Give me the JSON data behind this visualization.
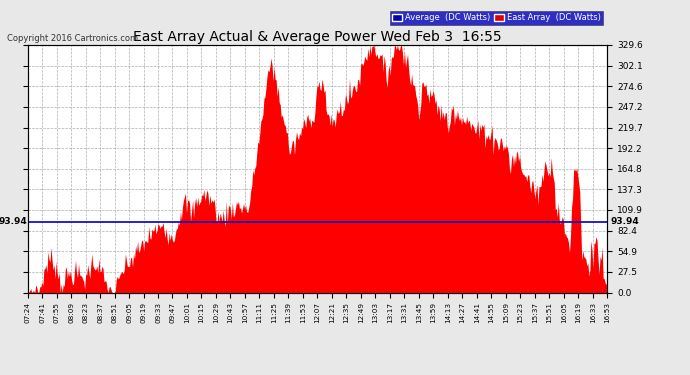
{
  "title": "East Array Actual & Average Power Wed Feb 3  16:55",
  "copyright": "Copyright 2016 Cartronics.com",
  "legend_labels": [
    "Average  (DC Watts)",
    "East Array  (DC Watts)"
  ],
  "legend_colors": [
    "#0000bb",
    "#dd0000"
  ],
  "avg_value": 93.94,
  "y_max": 329.6,
  "y_ticks": [
    0.0,
    27.5,
    54.9,
    82.4,
    109.9,
    137.3,
    164.8,
    192.2,
    219.7,
    247.2,
    274.6,
    302.1,
    329.6
  ],
  "y_tick_labels": [
    "0.0",
    "27.5",
    "54.9",
    "82.4",
    "109.9",
    "137.3",
    "164.8",
    "192.2",
    "219.7",
    "247.2",
    "274.6",
    "302.1",
    "329.6"
  ],
  "x_labels": [
    "07:24",
    "07:41",
    "07:55",
    "08:09",
    "08:23",
    "08:37",
    "08:51",
    "09:05",
    "09:19",
    "09:33",
    "09:47",
    "10:01",
    "10:15",
    "10:29",
    "10:43",
    "10:57",
    "11:11",
    "11:25",
    "11:39",
    "11:53",
    "12:07",
    "12:21",
    "12:35",
    "12:49",
    "13:03",
    "13:17",
    "13:31",
    "13:45",
    "13:59",
    "14:13",
    "14:27",
    "14:41",
    "14:55",
    "15:09",
    "15:23",
    "15:37",
    "15:51",
    "16:05",
    "16:19",
    "16:33",
    "16:53"
  ],
  "background_color": "#e8e8e8",
  "plot_bg_color": "#ffffff",
  "grid_color": "#999999",
  "bar_color": "#ff0000",
  "avg_line_color": "#0000cc",
  "title_color": "#000000"
}
